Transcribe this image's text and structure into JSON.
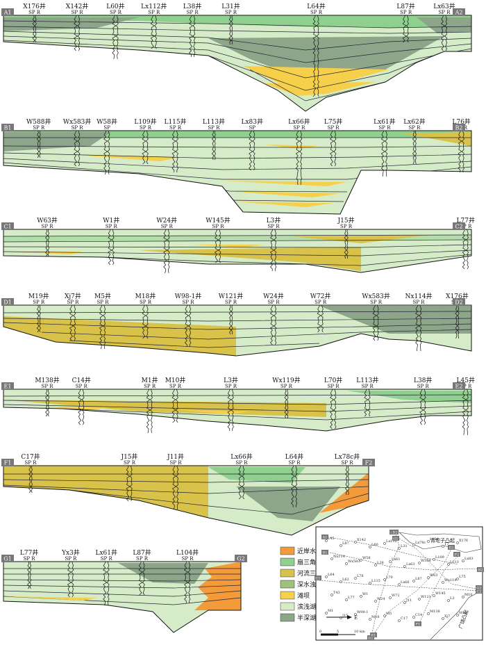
{
  "colors": {
    "near_fan": "#f39a3b",
    "fan_delta": "#8fd08e",
    "river_delta": "#d8c24a",
    "turbidite": "#9dc27a",
    "beach_bar": "#f7d04b",
    "shallow_lake": "#d6ecc8",
    "semi_deep": "#8da68a"
  },
  "legend": [
    {
      "key": "near_fan",
      "label": "近岸水下扇"
    },
    {
      "key": "fan_delta",
      "label": "扇三角洲"
    },
    {
      "key": "river_delta",
      "label": "河流三角洲"
    },
    {
      "key": "turbidite",
      "label": "深水浊积扇"
    },
    {
      "key": "beach_bar",
      "label": "滩坝"
    },
    {
      "key": "shallow_lake",
      "label": "滨浅湖"
    },
    {
      "key": "semi_deep",
      "label": "半深湖—深湖"
    }
  ],
  "sections": [
    {
      "start": "A1",
      "end": "A2",
      "wells": [
        {
          "n": "X176井",
          "s": "SP R",
          "x": 0.04
        },
        {
          "n": "X142井",
          "s": "SP R",
          "x": 0.14
        },
        {
          "n": "L60井",
          "s": "SP R",
          "x": 0.23
        },
        {
          "n": "Lx112井",
          "s": "SP R",
          "x": 0.32
        },
        {
          "n": "L38井",
          "s": "SP R",
          "x": 0.41
        },
        {
          "n": "L31井",
          "s": "SP R",
          "x": 0.5
        },
        {
          "n": "L64井",
          "s": "SP R",
          "x": 0.7
        },
        {
          "n": "L87井",
          "s": "SP R",
          "x": 0.91
        },
        {
          "n": "Lx63井",
          "s": "SP R",
          "x": 1.0
        }
      ]
    },
    {
      "start": "B1",
      "end": "B2",
      "wells": [
        {
          "n": "W588井",
          "s": "SP R",
          "x": 0.05
        },
        {
          "n": "Wx583井",
          "s": "SP R",
          "x": 0.14
        },
        {
          "n": "W58井",
          "s": "SP",
          "x": 0.21
        },
        {
          "n": "L109井",
          "s": "SP R",
          "x": 0.3
        },
        {
          "n": "L115井",
          "s": "SP R",
          "x": 0.37
        },
        {
          "n": "L113井",
          "s": "SP R",
          "x": 0.46
        },
        {
          "n": "Lx83井",
          "s": "SP",
          "x": 0.55
        },
        {
          "n": "Lx66井",
          "s": "SP R",
          "x": 0.66
        },
        {
          "n": "L75井",
          "s": "SP R",
          "x": 0.74
        },
        {
          "n": "Lx61井",
          "s": "SP R",
          "x": 0.86
        },
        {
          "n": "Lx62井",
          "s": "SP R",
          "x": 0.93
        },
        {
          "n": "L76井",
          "s": "SP R",
          "x": 1.04
        }
      ]
    },
    {
      "start": "C1",
      "end": "C2",
      "wells": [
        {
          "n": "W63井",
          "s": "SP R",
          "x": 0.07
        },
        {
          "n": "W1井",
          "s": "SP R",
          "x": 0.22
        },
        {
          "n": "W24井",
          "s": "SP R",
          "x": 0.35
        },
        {
          "n": "W145井",
          "s": "SP R",
          "x": 0.47
        },
        {
          "n": "L3井",
          "s": "SP R",
          "x": 0.6
        },
        {
          "n": "J15井",
          "s": "SP R",
          "x": 0.77
        },
        {
          "n": "L77井",
          "s": "SP R",
          "x": 1.05
        }
      ]
    },
    {
      "start": "D1",
      "end": "D2",
      "wells": [
        {
          "n": "M19井",
          "s": "SP R",
          "x": 0.05
        },
        {
          "n": "Xj7井",
          "s": "SP R",
          "x": 0.13
        },
        {
          "n": "M5井",
          "s": "SP R",
          "x": 0.2
        },
        {
          "n": "M18井",
          "s": "SP R",
          "x": 0.3
        },
        {
          "n": "W98-1井",
          "s": "SP R",
          "x": 0.4
        },
        {
          "n": "W121井",
          "s": "SP R",
          "x": 0.5
        },
        {
          "n": "W24井",
          "s": "SP R",
          "x": 0.6
        },
        {
          "n": "W72井",
          "s": "SP R",
          "x": 0.71
        },
        {
          "n": "Wx583井",
          "s": "SP R",
          "x": 0.84
        },
        {
          "n": "Nx114井",
          "s": "SP R",
          "x": 0.94
        },
        {
          "n": "X176井",
          "s": "SP R",
          "x": 1.03
        }
      ]
    },
    {
      "start": "E1",
      "end": "E2",
      "wells": [
        {
          "n": "M138井",
          "s": "SP R",
          "x": 0.07
        },
        {
          "n": "C14井",
          "s": "SP R",
          "x": 0.15
        },
        {
          "n": "M1井",
          "s": "SP R",
          "x": 0.31
        },
        {
          "n": "M10井",
          "s": "SP R",
          "x": 0.37
        },
        {
          "n": "L3井",
          "s": "SP R",
          "x": 0.5
        },
        {
          "n": "Wx119井",
          "s": "SP R",
          "x": 0.63
        },
        {
          "n": "L70井",
          "s": "SP R",
          "x": 0.74
        },
        {
          "n": "L113井",
          "s": "SP R",
          "x": 0.82
        },
        {
          "n": "L38井",
          "s": "SP R",
          "x": 0.95
        },
        {
          "n": "L45井",
          "s": "SP R",
          "x": 1.05
        }
      ]
    },
    {
      "start": "F1",
      "end": "F2",
      "wells": [
        {
          "n": "C17井",
          "s": "SP R",
          "x": 0.04
        },
        {
          "n": "J15井",
          "s": "SP R",
          "x": 0.34
        },
        {
          "n": "J11井",
          "s": "SP R",
          "x": 0.48
        },
        {
          "n": "Lx66井",
          "s": "SP R",
          "x": 0.68
        },
        {
          "n": "L64井",
          "s": "SP R",
          "x": 0.84
        },
        {
          "n": "Lx78c井",
          "s": "SP R",
          "x": 1.0
        }
      ]
    },
    {
      "start": "G1",
      "end": "G2",
      "wells": [
        {
          "n": "L77井",
          "s": "SP R",
          "x": 0.06
        },
        {
          "n": "Yx3井",
          "s": "SP R",
          "x": 0.27
        },
        {
          "n": "Lx61井",
          "s": "SP R",
          "x": 0.45
        },
        {
          "n": "L87井",
          "s": "SP R",
          "x": 0.63
        },
        {
          "n": "L104井",
          "s": "SP R",
          "x": 0.86
        }
      ]
    }
  ],
  "map": {
    "uplift": "青坨子凸起",
    "uplift2": "广饶凸起",
    "arrow_label": "E",
    "scale": [
      "0",
      "5",
      "10 km"
    ],
    "line_labels": [
      "A1",
      "A2",
      "B1",
      "B2",
      "C1",
      "C2",
      "D1",
      "D2",
      "E1",
      "E2",
      "F1",
      "F2",
      "G1",
      "G2"
    ],
    "wells": [
      "L45",
      "L87",
      "X142",
      "L60",
      "Lx112",
      "L31",
      "Lx78c",
      "L104",
      "T7",
      "X176",
      "Nx114",
      "Wx583",
      "W58",
      "L38",
      "Lx61",
      "Lx63",
      "W588",
      "L109",
      "L113",
      "Lx83",
      "L64",
      "L62",
      "L76",
      "L115",
      "L70",
      "Lx66",
      "L87",
      "W63",
      "Wx119",
      "L75",
      "T43",
      "L77",
      "W1",
      "W24",
      "W72",
      "J11",
      "W121",
      "W145",
      "L3",
      "M10",
      "M1",
      "J15",
      "W98-1",
      "M18",
      "M5",
      "C17",
      "C14",
      "M138",
      "Xj7",
      "M19"
    ]
  }
}
